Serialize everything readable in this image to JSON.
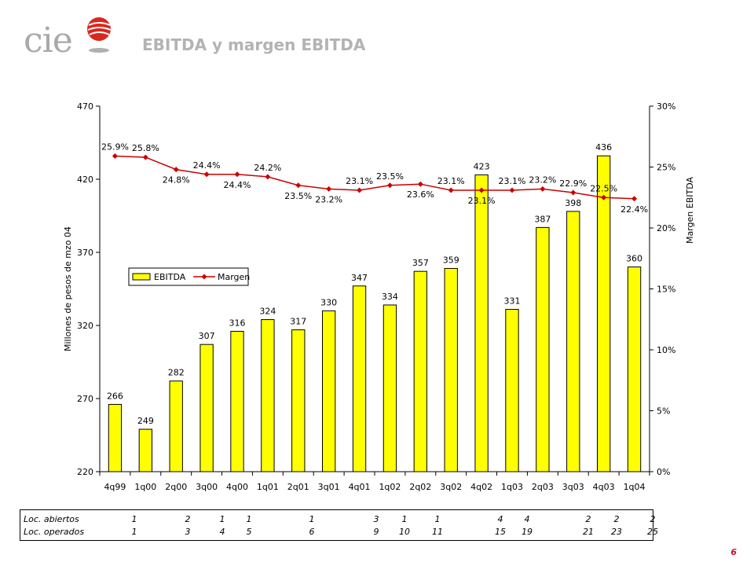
{
  "header": {
    "logo_text": "cie",
    "title": "EBITDA y margen EBITDA"
  },
  "page_number": "6",
  "colors": {
    "bar": "#ffff00",
    "line": "#cc0000",
    "logo_red": "#d9281e",
    "title": "#b3b3b3"
  },
  "chart_data": {
    "type": "bar+line",
    "categories": [
      "4q99",
      "1q00",
      "2q00",
      "3q00",
      "4q00",
      "1q01",
      "2q01",
      "3q01",
      "4q01",
      "1q02",
      "2q02",
      "3q02",
      "4q02",
      "1q03",
      "2q03",
      "3q03",
      "4q03",
      "1q04"
    ],
    "series": [
      {
        "name": "EBITDA",
        "type": "bar",
        "axis": "left",
        "values": [
          266,
          249,
          282,
          307,
          316,
          324,
          317,
          330,
          347,
          334,
          357,
          359,
          423,
          331,
          387,
          398,
          436,
          360
        ],
        "labels": [
          "266",
          "249",
          "282",
          "307",
          "316",
          "324",
          "317",
          "330",
          "347",
          "334",
          "357",
          "359",
          "423",
          "331",
          "387",
          "398",
          "436",
          "360"
        ]
      },
      {
        "name": "Margen",
        "type": "line",
        "axis": "right",
        "values": [
          25.9,
          25.8,
          24.8,
          24.4,
          24.4,
          24.2,
          23.5,
          23.2,
          23.1,
          23.5,
          23.6,
          23.1,
          23.1,
          23.1,
          23.2,
          22.9,
          22.5,
          22.4
        ],
        "labels": [
          "25.9%",
          "25.8%",
          "24.8%",
          "24.4%",
          "24.4%",
          "24.2%",
          "23.5%",
          "23.2%",
          "23.1%",
          "23.5%",
          "23.6%",
          "23.1%",
          "23.1%",
          "23.1%",
          "23.2%",
          "22.9%",
          "22.5%",
          "22.4%"
        ]
      }
    ],
    "ylabel": "Millones de pesos de mzo 04",
    "y2label": "Margen EBITDA",
    "ylim": [
      220,
      470
    ],
    "yticks": [
      "220",
      "270",
      "320",
      "370",
      "420",
      "470"
    ],
    "y2lim": [
      0,
      30
    ],
    "y2ticks": [
      "0%",
      "5%",
      "10%",
      "15%",
      "20%",
      "25%",
      "30%"
    ],
    "legend": {
      "items": [
        "EBITDA",
        "Margen"
      ],
      "placement": "center-left"
    },
    "grid": false
  },
  "table": {
    "rows": [
      {
        "label": "Loc. abiertos",
        "values": [
          "1",
          "2",
          "1",
          "1",
          "",
          "1",
          "",
          "3",
          "1",
          "1",
          "",
          "4",
          "4",
          "",
          "2",
          "2",
          "2"
        ]
      },
      {
        "label": "Loc. operados",
        "values": [
          "1",
          "3",
          "4",
          "5",
          "",
          "6",
          "",
          "9",
          "10",
          "11",
          "",
          "15",
          "19",
          "",
          "21",
          "23",
          "25"
        ]
      }
    ]
  }
}
